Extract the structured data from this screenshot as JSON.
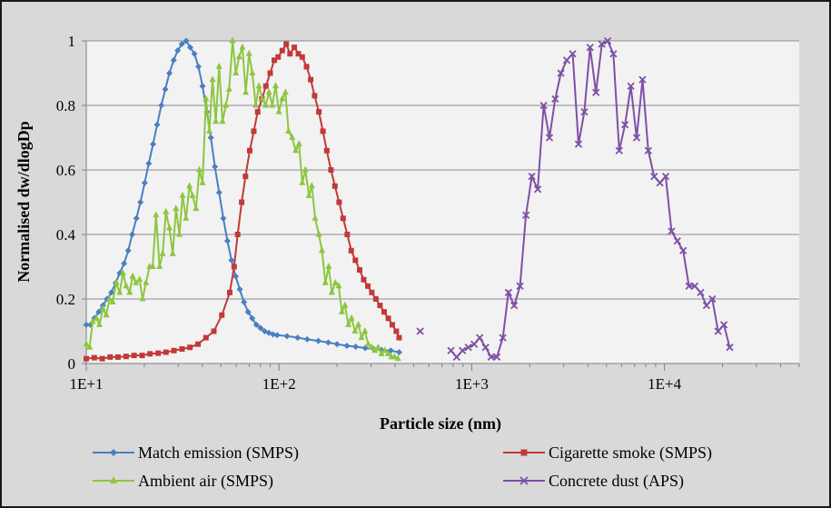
{
  "chart_data": {
    "type": "line",
    "x_scale": "log",
    "xlabel": "Particle size (nm)",
    "ylabel": "Normalised dw/dlogDp",
    "xlim": [
      10,
      50000
    ],
    "ylim": [
      0,
      1
    ],
    "x_ticks": [
      "1E+1",
      "1E+2",
      "1E+3",
      "1E+4"
    ],
    "y_ticks": [
      "0",
      "0.2",
      "0.4",
      "0.6",
      "0.8",
      "1"
    ],
    "grid": "horizontal",
    "legend_position": "bottom",
    "series": [
      {
        "name": "Match emission (SMPS)",
        "color": "#4a7fc1",
        "marker": "diamond",
        "points": [
          [
            10.0,
            0.12
          ],
          [
            10.5,
            0.12
          ],
          [
            11.0,
            0.14
          ],
          [
            11.6,
            0.16
          ],
          [
            12.2,
            0.18
          ],
          [
            12.8,
            0.2
          ],
          [
            13.5,
            0.22
          ],
          [
            14.2,
            0.25
          ],
          [
            14.9,
            0.28
          ],
          [
            15.7,
            0.31
          ],
          [
            16.5,
            0.35
          ],
          [
            17.3,
            0.4
          ],
          [
            18.2,
            0.45
          ],
          [
            19.1,
            0.5
          ],
          [
            20.1,
            0.56
          ],
          [
            21.1,
            0.62
          ],
          [
            22.2,
            0.68
          ],
          [
            23.3,
            0.74
          ],
          [
            24.5,
            0.8
          ],
          [
            25.7,
            0.85
          ],
          [
            27.0,
            0.9
          ],
          [
            28.4,
            0.94
          ],
          [
            29.8,
            0.97
          ],
          [
            31.3,
            0.99
          ],
          [
            33.0,
            1.0
          ],
          [
            34.6,
            0.98
          ],
          [
            36.4,
            0.96
          ],
          [
            38.2,
            0.92
          ],
          [
            40.1,
            0.86
          ],
          [
            42.2,
            0.78
          ],
          [
            44.3,
            0.7
          ],
          [
            46.5,
            0.61
          ],
          [
            48.9,
            0.53
          ],
          [
            51.4,
            0.45
          ],
          [
            54.0,
            0.38
          ],
          [
            56.7,
            0.32
          ],
          [
            59.6,
            0.27
          ],
          [
            62.6,
            0.23
          ],
          [
            65.8,
            0.19
          ],
          [
            69.1,
            0.16
          ],
          [
            72.6,
            0.14
          ],
          [
            76.3,
            0.12
          ],
          [
            80.2,
            0.11
          ],
          [
            84.3,
            0.1
          ],
          [
            88.6,
            0.095
          ],
          [
            93.1,
            0.09
          ],
          [
            97.8,
            0.088
          ],
          [
            110,
            0.085
          ],
          [
            125,
            0.08
          ],
          [
            140,
            0.075
          ],
          [
            160,
            0.07
          ],
          [
            180,
            0.065
          ],
          [
            200,
            0.06
          ],
          [
            225,
            0.055
          ],
          [
            250,
            0.052
          ],
          [
            280,
            0.048
          ],
          [
            310,
            0.045
          ],
          [
            340,
            0.042
          ],
          [
            380,
            0.04
          ],
          [
            420,
            0.035
          ]
        ]
      },
      {
        "name": "Cigarette smoke (SMPS)",
        "color": "#c03a38",
        "marker": "square",
        "points": [
          [
            10.0,
            0.015
          ],
          [
            11.0,
            0.018
          ],
          [
            12.1,
            0.015
          ],
          [
            13.3,
            0.02
          ],
          [
            14.6,
            0.02
          ],
          [
            16.1,
            0.022
          ],
          [
            17.7,
            0.025
          ],
          [
            19.5,
            0.025
          ],
          [
            21.4,
            0.03
          ],
          [
            23.6,
            0.032
          ],
          [
            25.9,
            0.035
          ],
          [
            28.5,
            0.04
          ],
          [
            31.4,
            0.045
          ],
          [
            34.5,
            0.05
          ],
          [
            38.0,
            0.06
          ],
          [
            41.8,
            0.08
          ],
          [
            45.9,
            0.1
          ],
          [
            50.5,
            0.15
          ],
          [
            55.5,
            0.22
          ],
          [
            58.5,
            0.3
          ],
          [
            61.0,
            0.4
          ],
          [
            64.0,
            0.5
          ],
          [
            67.0,
            0.58
          ],
          [
            70.5,
            0.66
          ],
          [
            74.0,
            0.72
          ],
          [
            77.5,
            0.78
          ],
          [
            81.5,
            0.82
          ],
          [
            85.5,
            0.86
          ],
          [
            90.0,
            0.9
          ],
          [
            94.5,
            0.94
          ],
          [
            99.0,
            0.95
          ],
          [
            104,
            0.97
          ],
          [
            109,
            0.99
          ],
          [
            114,
            0.96
          ],
          [
            120,
            0.98
          ],
          [
            126,
            0.96
          ],
          [
            132,
            0.95
          ],
          [
            139,
            0.92
          ],
          [
            146,
            0.88
          ],
          [
            153,
            0.83
          ],
          [
            161,
            0.78
          ],
          [
            169,
            0.72
          ],
          [
            177,
            0.66
          ],
          [
            186,
            0.6
          ],
          [
            195,
            0.55
          ],
          [
            205,
            0.5
          ],
          [
            215,
            0.45
          ],
          [
            226,
            0.4
          ],
          [
            237,
            0.35
          ],
          [
            249,
            0.32
          ],
          [
            262,
            0.29
          ],
          [
            275,
            0.26
          ],
          [
            289,
            0.24
          ],
          [
            303,
            0.22
          ],
          [
            318,
            0.2
          ],
          [
            334,
            0.18
          ],
          [
            351,
            0.16
          ],
          [
            369,
            0.14
          ],
          [
            387,
            0.12
          ],
          [
            406,
            0.1
          ],
          [
            420,
            0.08
          ]
        ]
      },
      {
        "name": "Ambient air (SMPS)",
        "color": "#8dc63f",
        "marker": "triangle",
        "points": [
          [
            10.0,
            0.06
          ],
          [
            10.4,
            0.05
          ],
          [
            10.8,
            0.13
          ],
          [
            11.3,
            0.14
          ],
          [
            11.7,
            0.12
          ],
          [
            12.2,
            0.17
          ],
          [
            12.7,
            0.15
          ],
          [
            13.2,
            0.2
          ],
          [
            13.7,
            0.19
          ],
          [
            14.3,
            0.25
          ],
          [
            14.9,
            0.22
          ],
          [
            15.5,
            0.28
          ],
          [
            16.1,
            0.24
          ],
          [
            16.8,
            0.22
          ],
          [
            17.4,
            0.27
          ],
          [
            18.1,
            0.25
          ],
          [
            18.9,
            0.26
          ],
          [
            19.6,
            0.2
          ],
          [
            20.4,
            0.25
          ],
          [
            21.3,
            0.3
          ],
          [
            22.1,
            0.3
          ],
          [
            23.0,
            0.46
          ],
          [
            24.0,
            0.3
          ],
          [
            24.9,
            0.34
          ],
          [
            25.9,
            0.47
          ],
          [
            27.0,
            0.42
          ],
          [
            28.1,
            0.34
          ],
          [
            29.2,
            0.48
          ],
          [
            30.4,
            0.4
          ],
          [
            31.6,
            0.52
          ],
          [
            32.9,
            0.45
          ],
          [
            34.3,
            0.55
          ],
          [
            35.6,
            0.52
          ],
          [
            37.1,
            0.48
          ],
          [
            38.6,
            0.6
          ],
          [
            40.1,
            0.56
          ],
          [
            41.8,
            0.82
          ],
          [
            43.5,
            0.72
          ],
          [
            45.2,
            0.88
          ],
          [
            47.0,
            0.75
          ],
          [
            48.9,
            0.92
          ],
          [
            50.9,
            0.75
          ],
          [
            53.0,
            0.8
          ],
          [
            55.1,
            0.85
          ],
          [
            57.4,
            1.0
          ],
          [
            59.7,
            0.9
          ],
          [
            62.1,
            0.95
          ],
          [
            64.6,
            0.98
          ],
          [
            67.2,
            0.84
          ],
          [
            69.9,
            0.96
          ],
          [
            72.7,
            0.9
          ],
          [
            75.7,
            0.8
          ],
          [
            78.7,
            0.86
          ],
          [
            81.9,
            0.82
          ],
          [
            85.2,
            0.8
          ],
          [
            88.7,
            0.84
          ],
          [
            92.3,
            0.8
          ],
          [
            96.0,
            0.86
          ],
          [
            99.9,
            0.78
          ],
          [
            104,
            0.82
          ],
          [
            108,
            0.84
          ],
          [
            112,
            0.72
          ],
          [
            117,
            0.7
          ],
          [
            122,
            0.66
          ],
          [
            127,
            0.68
          ],
          [
            132,
            0.56
          ],
          [
            137,
            0.6
          ],
          [
            143,
            0.52
          ],
          [
            148,
            0.55
          ],
          [
            154,
            0.45
          ],
          [
            161,
            0.4
          ],
          [
            167,
            0.35
          ],
          [
            174,
            0.25
          ],
          [
            181,
            0.3
          ],
          [
            188,
            0.22
          ],
          [
            196,
            0.25
          ],
          [
            204,
            0.24
          ],
          [
            212,
            0.16
          ],
          [
            220,
            0.18
          ],
          [
            229,
            0.12
          ],
          [
            238,
            0.14
          ],
          [
            248,
            0.1
          ],
          [
            258,
            0.12
          ],
          [
            268,
            0.08
          ],
          [
            279,
            0.1
          ],
          [
            290,
            0.06
          ],
          [
            302,
            0.05
          ],
          [
            314,
            0.04
          ],
          [
            327,
            0.05
          ],
          [
            340,
            0.03
          ],
          [
            354,
            0.04
          ],
          [
            368,
            0.03
          ],
          [
            383,
            0.02
          ],
          [
            398,
            0.02
          ],
          [
            414,
            0.015
          ]
        ]
      },
      {
        "name": "Concrete dust (APS)",
        "color": "#7f4fa5",
        "marker": "x",
        "points": [
          [
            540,
            0.1
          ],
          [
            780,
            0.04
          ],
          [
            835,
            0.02
          ],
          [
            895,
            0.04
          ],
          [
            960,
            0.05
          ],
          [
            1030,
            0.06
          ],
          [
            1100,
            0.08
          ],
          [
            1180,
            0.05
          ],
          [
            1260,
            0.02
          ],
          [
            1350,
            0.02
          ],
          [
            1450,
            0.08
          ],
          [
            1550,
            0.22
          ],
          [
            1660,
            0.18
          ],
          [
            1780,
            0.24
          ],
          [
            1910,
            0.46
          ],
          [
            2050,
            0.58
          ],
          [
            2200,
            0.54
          ],
          [
            2360,
            0.8
          ],
          [
            2530,
            0.7
          ],
          [
            2710,
            0.82
          ],
          [
            2900,
            0.9
          ],
          [
            3110,
            0.94
          ],
          [
            3340,
            0.96
          ],
          [
            3580,
            0.68
          ],
          [
            3840,
            0.78
          ],
          [
            4110,
            0.98
          ],
          [
            4410,
            0.84
          ],
          [
            4730,
            0.99
          ],
          [
            5070,
            1.0
          ],
          [
            5430,
            0.96
          ],
          [
            5820,
            0.66
          ],
          [
            6240,
            0.74
          ],
          [
            6690,
            0.86
          ],
          [
            7170,
            0.7
          ],
          [
            7690,
            0.88
          ],
          [
            8240,
            0.66
          ],
          [
            8840,
            0.58
          ],
          [
            9470,
            0.56
          ],
          [
            10150,
            0.58
          ],
          [
            10880,
            0.41
          ],
          [
            11660,
            0.38
          ],
          [
            12500,
            0.35
          ],
          [
            13400,
            0.24
          ],
          [
            14370,
            0.24
          ],
          [
            15400,
            0.22
          ],
          [
            16510,
            0.18
          ],
          [
            17700,
            0.2
          ],
          [
            18970,
            0.1
          ],
          [
            20340,
            0.12
          ],
          [
            21800,
            0.05
          ]
        ]
      }
    ]
  }
}
